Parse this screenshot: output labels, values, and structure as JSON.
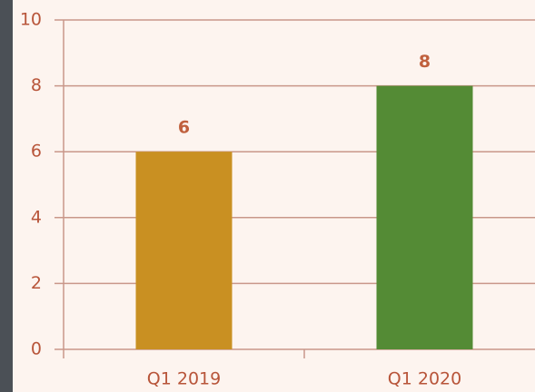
{
  "chart_data": {
    "type": "bar",
    "categories": [
      "Q1 2019",
      "Q1 2020"
    ],
    "values": [
      6,
      8
    ],
    "colors": [
      "#c99022",
      "#548b35"
    ],
    "ylim": [
      0,
      10
    ],
    "yticks": [
      0,
      2,
      4,
      6,
      8,
      10
    ],
    "grid": true
  }
}
